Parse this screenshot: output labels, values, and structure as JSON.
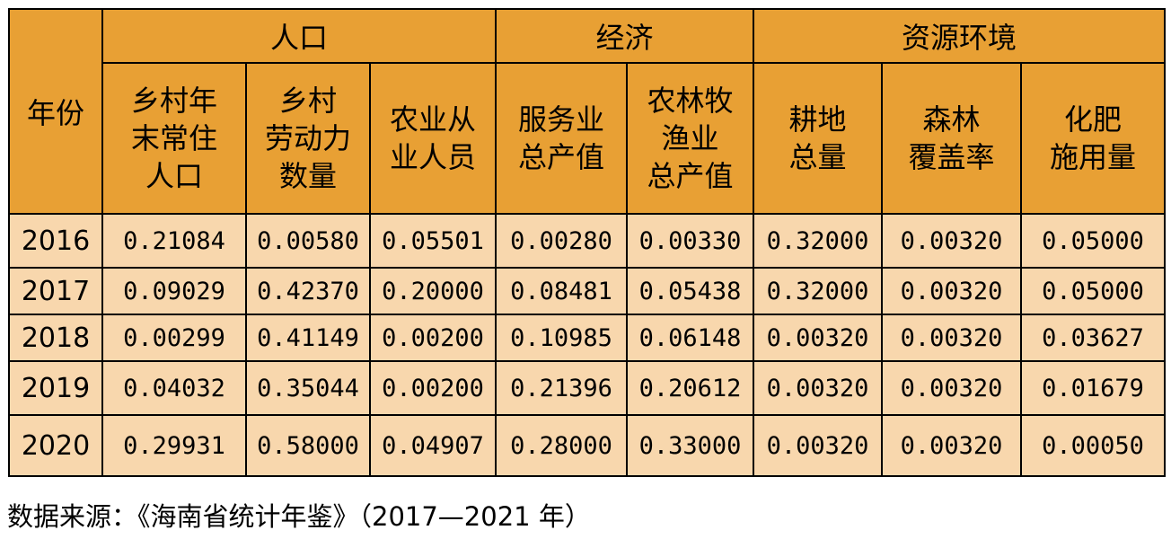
{
  "table": {
    "year_header": "年份",
    "groups": [
      {
        "label": "人口",
        "span": 3
      },
      {
        "label": "经济",
        "span": 2
      },
      {
        "label": "资源环境",
        "span": 3
      }
    ],
    "columns": [
      "乡村年末常住人口",
      "乡村劳动力数量",
      "农业从业人员",
      "服务业总产值",
      "农林牧渔业总产值",
      "耕地总量",
      "森林覆盖率",
      "化肥施用量"
    ],
    "column_lines": [
      [
        "乡村年",
        "末常住",
        "人口"
      ],
      [
        "乡村",
        "劳动力",
        "数量"
      ],
      [
        "农业从",
        "业人员"
      ],
      [
        "服务业",
        "总产值"
      ],
      [
        "农林牧",
        "渔业",
        "总产值"
      ],
      [
        "耕地",
        "总量"
      ],
      [
        "森林",
        "覆盖率"
      ],
      [
        "化肥",
        "施用量"
      ]
    ],
    "rows": [
      {
        "year": "2016",
        "values": [
          "0.21084",
          "0.00580",
          "0.05501",
          "0.00280",
          "0.00330",
          "0.32000",
          "0.00320",
          "0.05000"
        ]
      },
      {
        "year": "2017",
        "values": [
          "0.09029",
          "0.42370",
          "0.20000",
          "0.08481",
          "0.05438",
          "0.32000",
          "0.00320",
          "0.05000"
        ]
      },
      {
        "year": "2018",
        "values": [
          "0.00299",
          "0.41149",
          "0.00200",
          "0.10985",
          "0.06148",
          "0.00320",
          "0.00320",
          "0.03627"
        ]
      },
      {
        "year": "2019",
        "values": [
          "0.04032",
          "0.35044",
          "0.00200",
          "0.21396",
          "0.20612",
          "0.00320",
          "0.00320",
          "0.01679"
        ]
      },
      {
        "year": "2020",
        "values": [
          "0.29931",
          "0.58000",
          "0.04907",
          "0.28000",
          "0.33000",
          "0.00320",
          "0.00320",
          "0.00050"
        ]
      }
    ]
  },
  "source_note": "数据来源：《海南省统计年鉴》（2017—2021 年）",
  "colors": {
    "header_bg": "#e8a034",
    "body_bg": "#f8d7ad",
    "border": "#000000"
  }
}
